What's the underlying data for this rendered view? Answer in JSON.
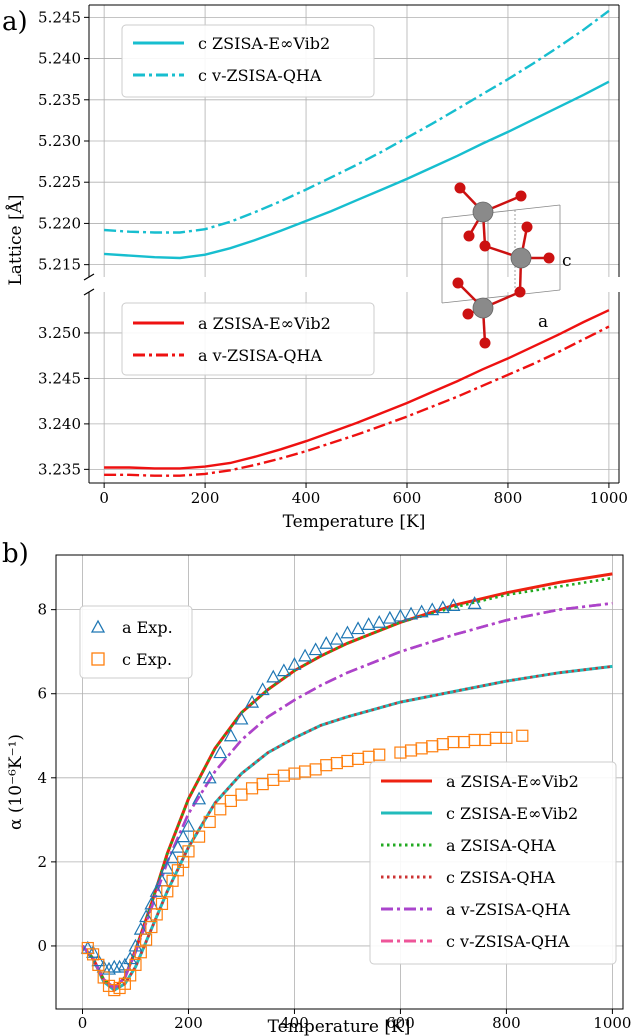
{
  "chart_data": [
    {
      "panel_label": "a)",
      "type": "line",
      "xlabel": "Temperature [K]",
      "ylabel": "Lattice [Å]",
      "xlim": [
        -30,
        1020
      ],
      "x_ticks": [
        0,
        200,
        400,
        600,
        800,
        1000
      ],
      "grid": true,
      "broken_axis": true,
      "subplots": [
        {
          "name": "c",
          "ylim": [
            5.2135,
            5.2465
          ],
          "y_ticks": [
            5.215,
            5.22,
            5.225,
            5.23,
            5.235,
            5.24,
            5.245
          ],
          "legend_position": "top-left",
          "series": [
            {
              "name": "c ZSISA-E∞Vib2",
              "style": "solid",
              "color": "#17becf",
              "x": [
                0,
                50,
                100,
                150,
                200,
                250,
                300,
                350,
                400,
                450,
                500,
                550,
                600,
                650,
                700,
                750,
                800,
                850,
                900,
                950,
                1000
              ],
              "y": [
                5.2163,
                5.2161,
                5.2159,
                5.2158,
                5.2162,
                5.217,
                5.218,
                5.2191,
                5.2203,
                5.2215,
                5.2228,
                5.2241,
                5.2254,
                5.2268,
                5.2282,
                5.2297,
                5.2311,
                5.2326,
                5.2341,
                5.2356,
                5.2372
              ]
            },
            {
              "name": "c v-ZSISA-QHA",
              "style": "dashdot",
              "color": "#17becf",
              "x": [
                0,
                50,
                100,
                150,
                200,
                250,
                300,
                350,
                400,
                450,
                500,
                550,
                600,
                650,
                700,
                750,
                800,
                850,
                900,
                950,
                1000
              ],
              "y": [
                5.2192,
                5.219,
                5.2189,
                5.2189,
                5.2193,
                5.2202,
                5.2214,
                5.2227,
                5.2241,
                5.2256,
                5.2271,
                5.2287,
                5.2304,
                5.2321,
                5.2339,
                5.2357,
                5.2375,
                5.2394,
                5.2414,
                5.2435,
                5.2458
              ]
            }
          ]
        },
        {
          "name": "a",
          "ylim": [
            3.2335,
            3.2545
          ],
          "y_ticks": [
            3.235,
            3.24,
            3.245,
            3.25
          ],
          "legend_position": "top-left",
          "series": [
            {
              "name": "a ZSISA-E∞Vib2",
              "style": "solid",
              "color": "#ee1111",
              "x": [
                0,
                50,
                100,
                150,
                200,
                250,
                300,
                350,
                400,
                450,
                500,
                550,
                600,
                650,
                700,
                750,
                800,
                850,
                900,
                950,
                1000
              ],
              "y": [
                3.2352,
                3.2352,
                3.2351,
                3.2351,
                3.2353,
                3.2357,
                3.2364,
                3.2372,
                3.2381,
                3.2391,
                3.2401,
                3.2412,
                3.2423,
                3.2435,
                3.2447,
                3.246,
                3.2472,
                3.2485,
                3.2498,
                3.2512,
                3.2525
              ]
            },
            {
              "name": "a v-ZSISA-QHA",
              "style": "dashdot",
              "color": "#ee1111",
              "x": [
                0,
                50,
                100,
                150,
                200,
                250,
                300,
                350,
                400,
                450,
                500,
                550,
                600,
                650,
                700,
                750,
                800,
                850,
                900,
                950,
                1000
              ],
              "y": [
                3.2344,
                3.2344,
                3.2343,
                3.2343,
                3.2345,
                3.2349,
                3.2355,
                3.2362,
                3.237,
                3.2379,
                3.2388,
                3.2398,
                3.2408,
                3.2419,
                3.243,
                3.2442,
                3.2454,
                3.2466,
                3.2479,
                3.2493,
                3.2507
              ]
            }
          ]
        }
      ],
      "inset_labels": [
        "c",
        "a"
      ]
    },
    {
      "panel_label": "b)",
      "type": "line",
      "xlabel": "Temperature [K]",
      "ylabel": "α (10⁻⁶K⁻¹)",
      "xlim": [
        -50,
        1020
      ],
      "ylim": [
        -1.5,
        9.3
      ],
      "x_ticks": [
        0,
        200,
        400,
        600,
        800,
        1000
      ],
      "y_ticks": [
        0,
        2,
        4,
        6,
        8
      ],
      "grid": true,
      "legend_positions": [
        "top-left",
        "bottom-right"
      ],
      "series": [
        {
          "name": "a ZSISA-E∞Vib2",
          "style": "solid",
          "color": "#ee2211",
          "x": [
            0,
            20,
            40,
            60,
            80,
            100,
            130,
            160,
            200,
            250,
            300,
            350,
            400,
            450,
            500,
            600,
            700,
            800,
            900,
            1000
          ],
          "y": [
            0,
            -0.3,
            -0.8,
            -1.0,
            -0.75,
            -0.1,
            1.0,
            2.2,
            3.5,
            4.7,
            5.55,
            6.1,
            6.55,
            6.9,
            7.2,
            7.7,
            8.1,
            8.4,
            8.65,
            8.85
          ]
        },
        {
          "name": "c ZSISA-E∞Vib2",
          "style": "solid",
          "color": "#22bbbb",
          "x": [
            0,
            20,
            40,
            60,
            80,
            100,
            130,
            160,
            200,
            250,
            300,
            350,
            400,
            450,
            500,
            600,
            700,
            800,
            900,
            1000
          ],
          "y": [
            0,
            -0.3,
            -0.85,
            -1.05,
            -0.9,
            -0.5,
            0.4,
            1.3,
            2.35,
            3.4,
            4.1,
            4.6,
            4.95,
            5.25,
            5.45,
            5.8,
            6.05,
            6.3,
            6.5,
            6.65
          ]
        },
        {
          "name": "a ZSISA-QHA",
          "style": "dotted",
          "color": "#22aa22",
          "x": [
            0,
            20,
            40,
            60,
            80,
            100,
            130,
            160,
            200,
            250,
            300,
            350,
            400,
            450,
            500,
            600,
            700,
            800,
            900,
            1000
          ],
          "y": [
            0,
            -0.3,
            -0.8,
            -1.0,
            -0.75,
            -0.1,
            1.0,
            2.2,
            3.5,
            4.7,
            5.55,
            6.1,
            6.55,
            6.9,
            7.2,
            7.7,
            8.05,
            8.35,
            8.55,
            8.75
          ]
        },
        {
          "name": "c ZSISA-QHA",
          "style": "dotted",
          "color": "#cc3333",
          "x": [
            0,
            20,
            40,
            60,
            80,
            100,
            130,
            160,
            200,
            250,
            300,
            350,
            400,
            450,
            500,
            600,
            700,
            800,
            900,
            1000
          ],
          "y": [
            0,
            -0.3,
            -0.85,
            -1.05,
            -0.9,
            -0.5,
            0.4,
            1.3,
            2.35,
            3.4,
            4.1,
            4.6,
            4.95,
            5.25,
            5.45,
            5.8,
            6.05,
            6.3,
            6.5,
            6.65
          ]
        },
        {
          "name": "a v-ZSISA-QHA",
          "style": "dashdot",
          "color": "#aa44cc",
          "x": [
            0,
            20,
            40,
            60,
            80,
            100,
            130,
            160,
            200,
            250,
            300,
            350,
            400,
            450,
            500,
            600,
            700,
            800,
            900,
            1000
          ],
          "y": [
            0,
            -0.3,
            -0.8,
            -1.0,
            -0.75,
            -0.15,
            0.9,
            2.0,
            3.15,
            4.15,
            4.9,
            5.45,
            5.85,
            6.2,
            6.5,
            7.0,
            7.4,
            7.75,
            8.0,
            8.15
          ]
        },
        {
          "name": "c v-ZSISA-QHA",
          "style": "dashdot",
          "color": "#ee5599",
          "x": [
            0,
            20,
            40,
            60,
            80,
            100,
            130,
            160,
            200,
            250,
            300,
            350,
            400,
            450,
            500,
            600,
            700,
            800,
            900,
            1000
          ],
          "y": [
            0,
            -0.3,
            -0.8,
            -1.0,
            -0.75,
            -0.15,
            0.9,
            2.0,
            3.15,
            4.15,
            4.9,
            5.45,
            5.85,
            6.2,
            6.5,
            7.0,
            7.4,
            7.75,
            8.0,
            8.15
          ]
        },
        {
          "name": "a Exp.",
          "style": "markers",
          "marker": "triangle",
          "color": "#1f77b4",
          "x": [
            10,
            20,
            30,
            40,
            50,
            60,
            70,
            80,
            90,
            100,
            110,
            120,
            130,
            140,
            150,
            160,
            170,
            180,
            190,
            200,
            220,
            240,
            260,
            280,
            300,
            320,
            340,
            360,
            380,
            400,
            420,
            440,
            460,
            480,
            500,
            520,
            540,
            560,
            580,
            600,
            620,
            640,
            660,
            680,
            700,
            740
          ],
          "y": [
            -0.05,
            -0.15,
            -0.35,
            -0.5,
            -0.55,
            -0.5,
            -0.5,
            -0.45,
            -0.3,
            0.0,
            0.4,
            0.7,
            1.0,
            1.3,
            1.55,
            1.85,
            2.1,
            2.35,
            2.6,
            2.85,
            3.5,
            4.0,
            4.6,
            5.0,
            5.4,
            5.8,
            6.1,
            6.4,
            6.55,
            6.7,
            6.9,
            7.05,
            7.2,
            7.3,
            7.45,
            7.55,
            7.65,
            7.7,
            7.8,
            7.85,
            7.9,
            7.95,
            8.0,
            8.05,
            8.1,
            8.15
          ]
        },
        {
          "name": "c Exp.",
          "style": "markers",
          "marker": "square",
          "color": "#ff7f0e",
          "x": [
            10,
            20,
            30,
            40,
            50,
            60,
            70,
            80,
            90,
            100,
            110,
            120,
            130,
            140,
            150,
            160,
            170,
            180,
            190,
            200,
            220,
            240,
            260,
            280,
            300,
            320,
            340,
            360,
            380,
            400,
            420,
            440,
            460,
            480,
            500,
            520,
            540,
            560,
            600,
            620,
            640,
            660,
            680,
            700,
            720,
            740,
            760,
            780,
            800,
            830
          ],
          "y": [
            -0.05,
            -0.2,
            -0.45,
            -0.75,
            -0.95,
            -1.05,
            -1.0,
            -0.9,
            -0.7,
            -0.45,
            -0.15,
            0.15,
            0.45,
            0.75,
            1.0,
            1.3,
            1.55,
            1.8,
            2.0,
            2.25,
            2.6,
            2.95,
            3.25,
            3.45,
            3.6,
            3.75,
            3.85,
            3.95,
            4.05,
            4.1,
            4.15,
            4.2,
            4.3,
            4.35,
            4.4,
            4.45,
            4.5,
            4.55,
            4.6,
            4.65,
            4.7,
            4.75,
            4.8,
            4.85,
            4.85,
            4.9,
            4.9,
            4.95,
            4.95,
            5.0
          ]
        }
      ]
    }
  ]
}
